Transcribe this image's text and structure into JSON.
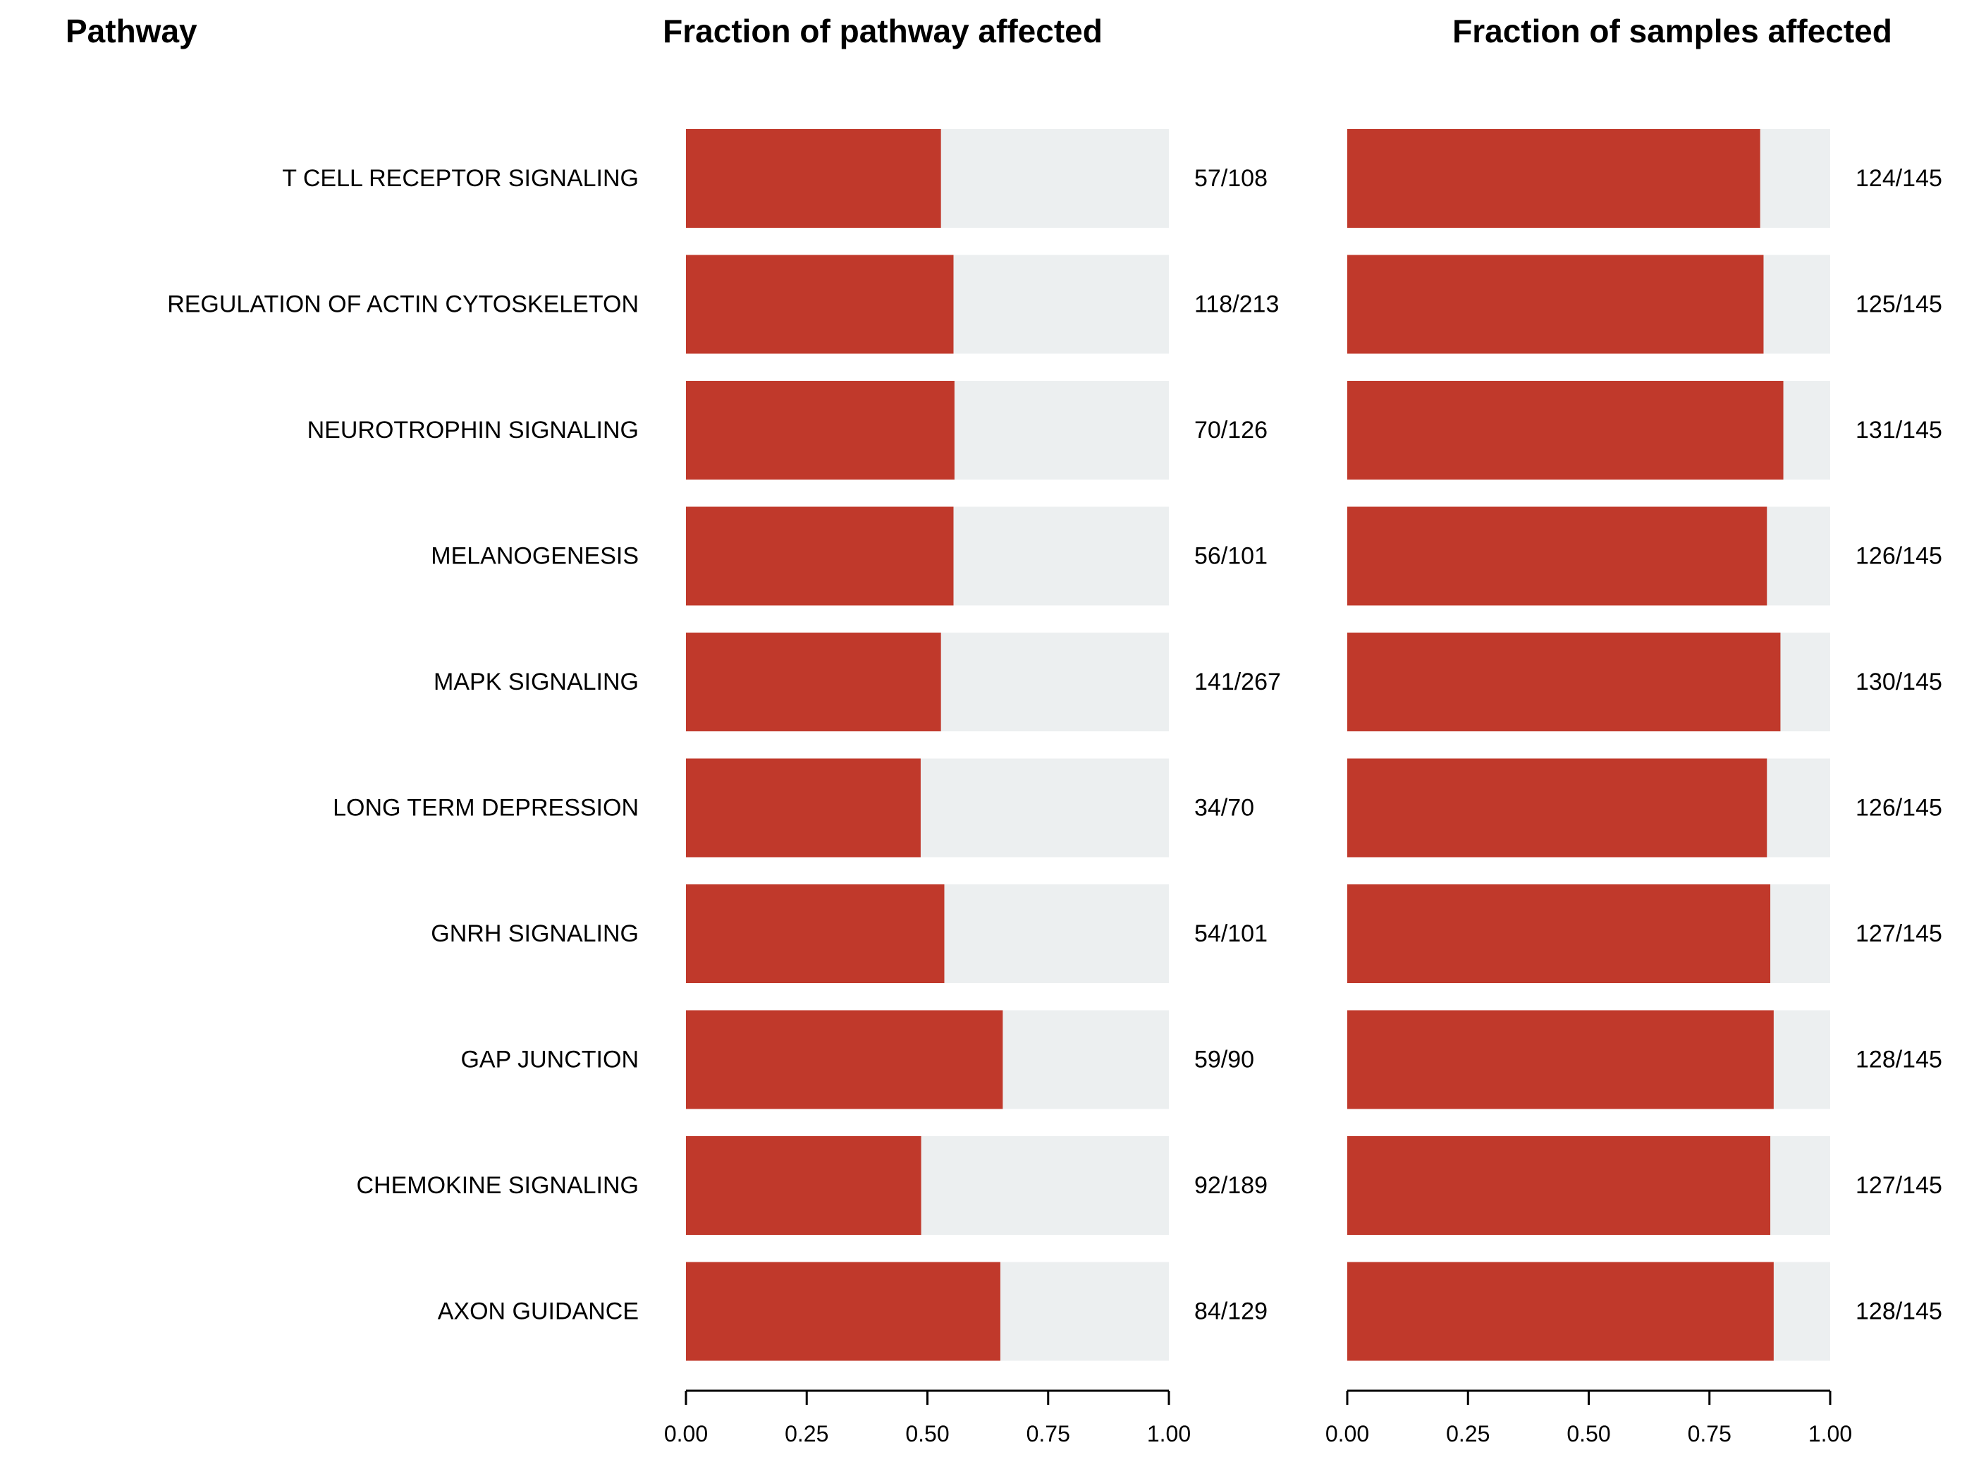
{
  "chart_data": {
    "type": "bar",
    "orientation": "horizontal",
    "headers": {
      "pathway": "Pathway",
      "panel1": "Fraction of pathway affected",
      "panel2": "Fraction of samples affected"
    },
    "categories": [
      "T CELL RECEPTOR SIGNALING",
      "REGULATION OF ACTIN CYTOSKELETON",
      "NEUROTROPHIN SIGNALING",
      "MELANOGENESIS",
      "MAPK SIGNALING",
      "LONG TERM DEPRESSION",
      "GNRH SIGNALING",
      "GAP JUNCTION",
      "CHEMOKINE SIGNALING",
      "AXON GUIDANCE"
    ],
    "panels": [
      {
        "title": "Fraction of pathway affected",
        "values": [
          0.528,
          0.554,
          0.556,
          0.554,
          0.528,
          0.486,
          0.535,
          0.656,
          0.487,
          0.651
        ],
        "counts": [
          "57/108",
          "118/213",
          "70/126",
          "56/101",
          "141/267",
          "34/70",
          "54/101",
          "59/90",
          "92/189",
          "84/129"
        ],
        "xlim": [
          0,
          1
        ],
        "ticks": [
          "0.00",
          "0.25",
          "0.50",
          "0.75",
          "1.00"
        ]
      },
      {
        "title": "Fraction of samples affected",
        "values": [
          0.855,
          0.862,
          0.903,
          0.869,
          0.897,
          0.869,
          0.876,
          0.883,
          0.876,
          0.883
        ],
        "counts": [
          "124/145",
          "125/145",
          "131/145",
          "126/145",
          "130/145",
          "126/145",
          "127/145",
          "128/145",
          "127/145",
          "128/145"
        ],
        "xlim": [
          0,
          1
        ],
        "ticks": [
          "0.00",
          "0.25",
          "0.50",
          "0.75",
          "1.00"
        ]
      }
    ],
    "colors": {
      "bar": "#c0392b",
      "background": "#eceff0"
    },
    "grid": false,
    "legend": "none"
  }
}
